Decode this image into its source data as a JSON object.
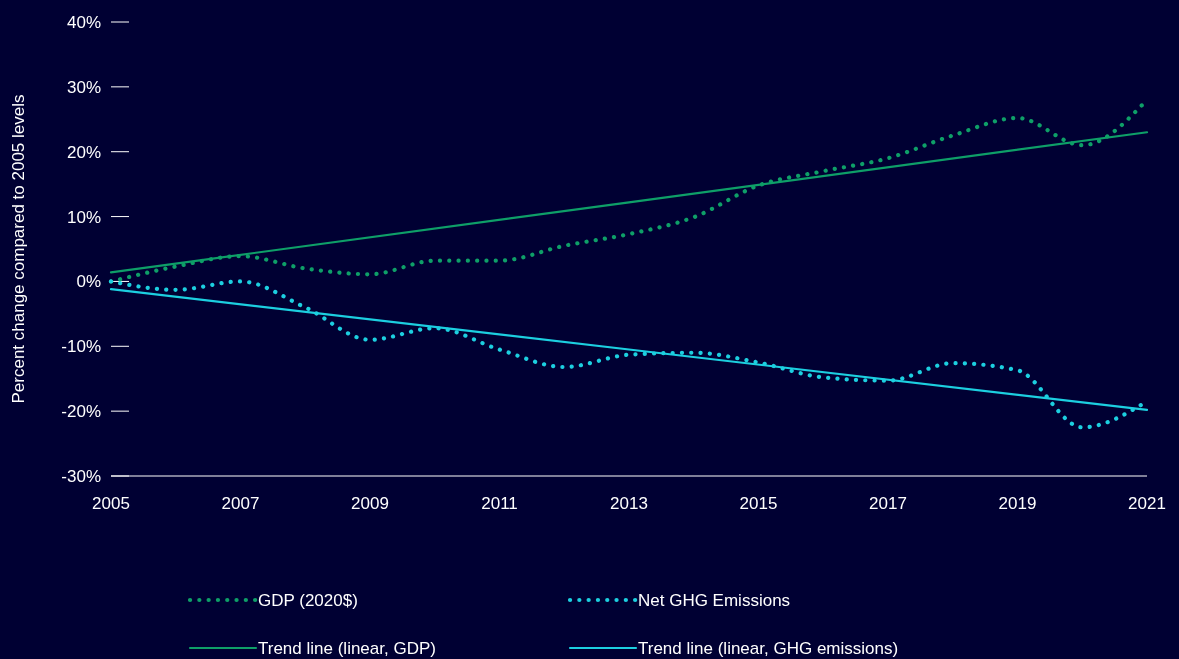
{
  "chart_data": {
    "type": "line",
    "ylabel": "Percent change compared to 2005 levels",
    "x": [
      2005,
      2006,
      2007,
      2008,
      2009,
      2010,
      2011,
      2012,
      2013,
      2014,
      2015,
      2016,
      2017,
      2018,
      2019,
      2020,
      2021
    ],
    "series": [
      {
        "name": "GDP (2020$)",
        "color": "#0e9f68",
        "line_style": "dotted",
        "values": [
          0,
          2.3,
          3.9,
          2.0,
          1.1,
          3.2,
          3.2,
          5.5,
          7.3,
          9.9,
          14.8,
          17,
          19,
          22.5,
          25.2,
          21,
          28
        ]
      },
      {
        "name": "Net GHG Emissions",
        "color": "#1ccfe0",
        "line_style": "dotted",
        "values": [
          0,
          -1.3,
          0,
          -4,
          -9,
          -7.2,
          -10.5,
          -13.2,
          -11.3,
          -11,
          -12.5,
          -14.8,
          -15.3,
          -12.6,
          -13.7,
          -22.5,
          -18.5
        ]
      },
      {
        "name": "Trend line (linear, GDP)",
        "color": "#0e9f68",
        "line_style": "solid",
        "x": [
          2005,
          2013,
          2021
        ],
        "values": [
          1.4,
          12.2,
          23
        ]
      },
      {
        "name": "Trend line (linear, GHG emissions)",
        "color": "#1ccfe0",
        "line_style": "solid",
        "x": [
          2005,
          2013,
          2021
        ],
        "values": [
          -1.2,
          -10.5,
          -19.8
        ]
      }
    ],
    "xlim": [
      2005,
      2021
    ],
    "xticks": [
      2005,
      2007,
      2009,
      2011,
      2013,
      2015,
      2017,
      2019,
      2021
    ],
    "ylim": [
      -30,
      40
    ],
    "yticks": [
      {
        "value": -30,
        "label": "-30%"
      },
      {
        "value": -20,
        "label": "-20%"
      },
      {
        "value": -10,
        "label": "-10%"
      },
      {
        "value": 0,
        "label": "0%"
      },
      {
        "value": 10,
        "label": "10%"
      },
      {
        "value": 20,
        "label": "20%"
      },
      {
        "value": 30,
        "label": "30%"
      },
      {
        "value": 40,
        "label": "40%"
      }
    ],
    "grid": false,
    "legend": "bottom",
    "marker": "none"
  }
}
